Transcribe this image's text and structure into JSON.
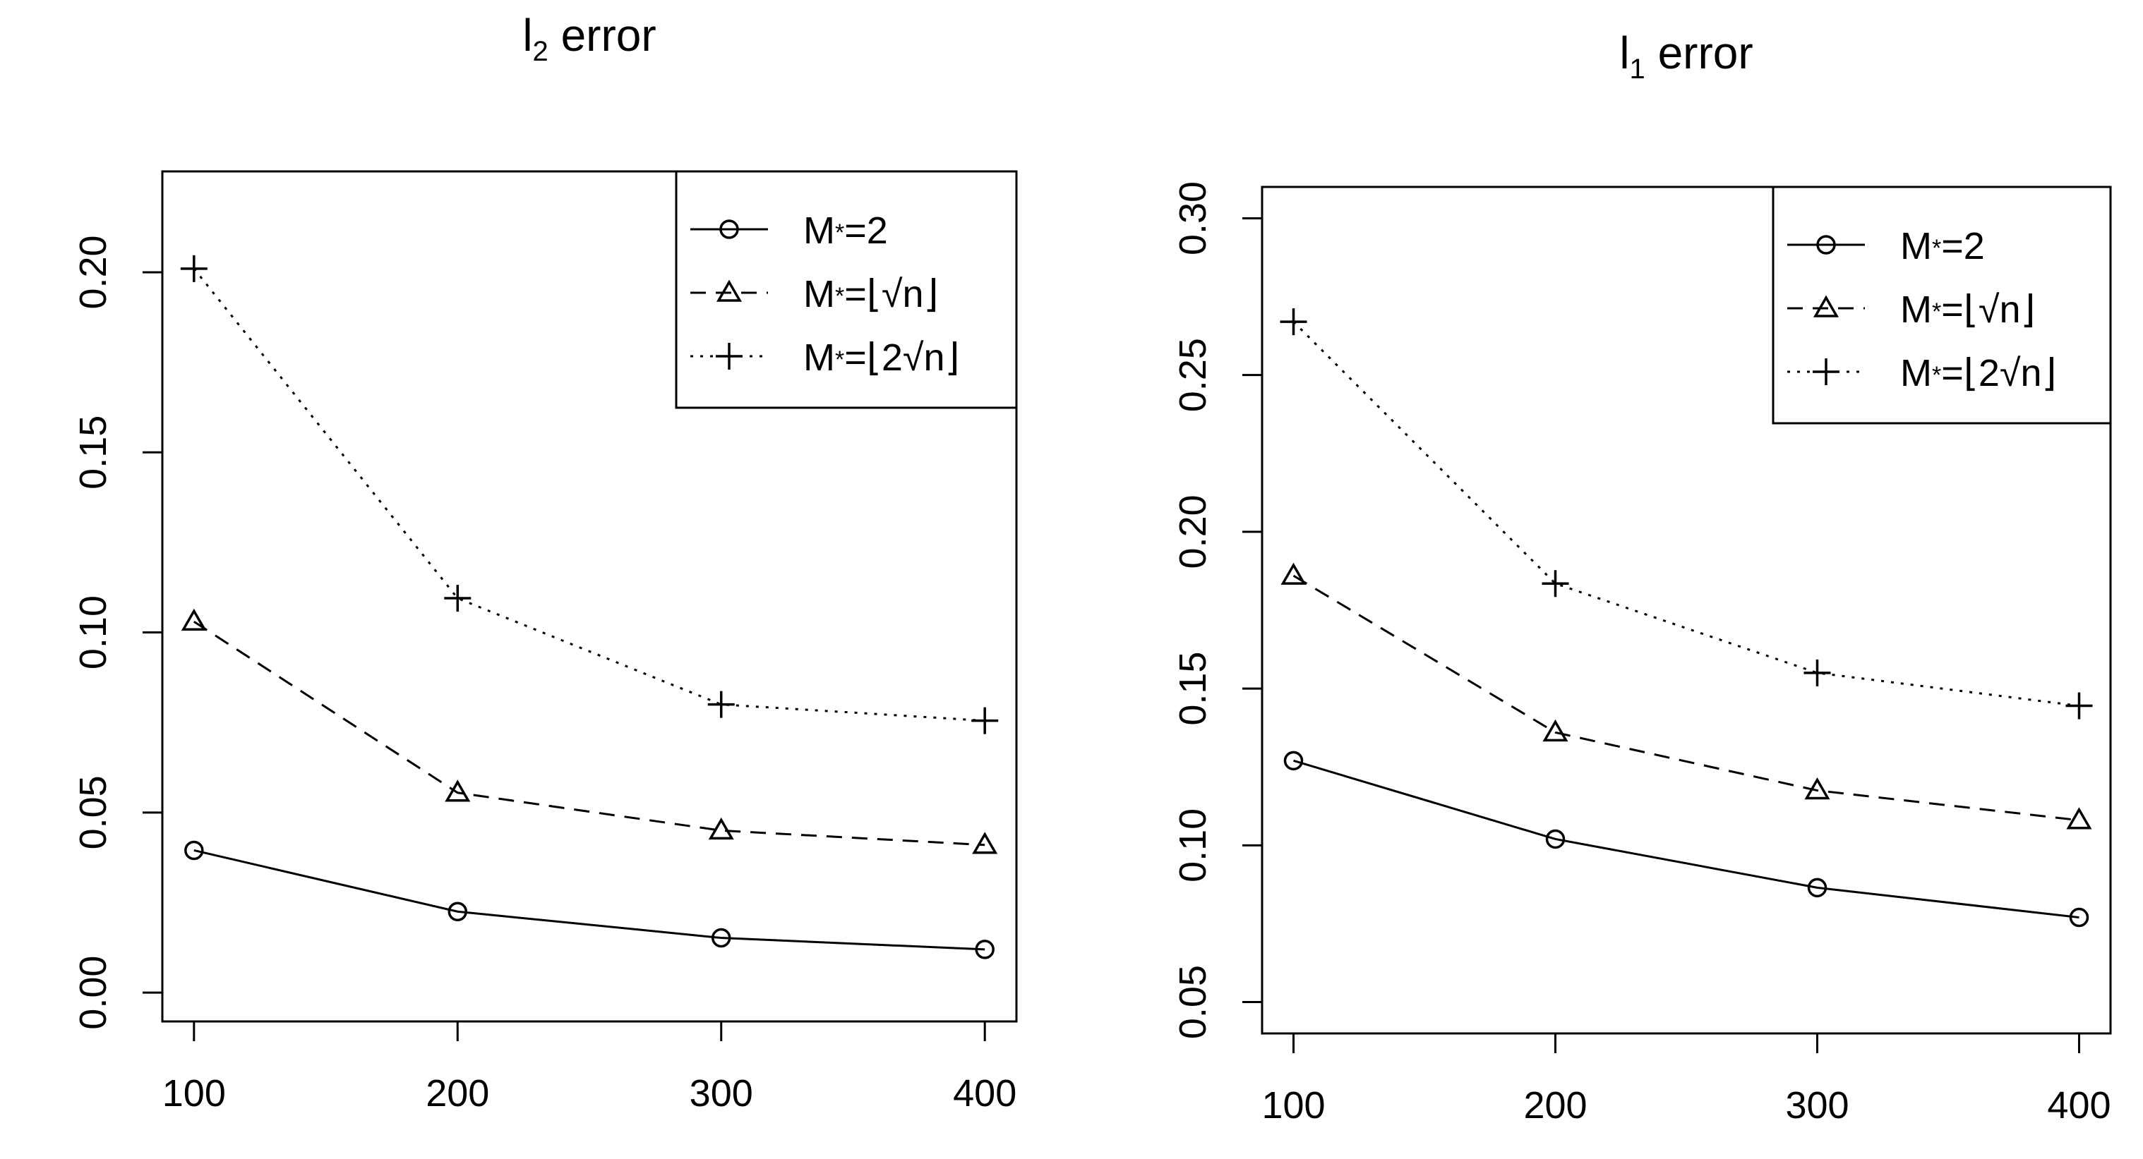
{
  "chart_data": [
    {
      "type": "line",
      "title": "l2 error",
      "title_main": "l",
      "title_sub": "2",
      "title_rest": " error",
      "x": [
        100,
        200,
        300,
        400
      ],
      "xticks": [
        "100",
        "200",
        "300",
        "400"
      ],
      "xlim": [
        88,
        412
      ],
      "yticks": [
        "0.00",
        "0.05",
        "0.10",
        "0.15",
        "0.20"
      ],
      "ylim": [
        -0.008,
        0.228
      ],
      "legend": "top-right",
      "series": [
        {
          "name": "M*=2",
          "marker": "circle",
          "line": "solid",
          "values": [
            0.0395,
            0.0225,
            0.0152,
            0.012
          ]
        },
        {
          "name": "M*=⌊√n⌋",
          "marker": "triangle",
          "line": "dashed",
          "values": [
            0.103,
            0.0555,
            0.045,
            0.041
          ]
        },
        {
          "name": "M*=⌊2√n⌋",
          "marker": "plus",
          "line": "dotted",
          "values": [
            0.201,
            0.1095,
            0.08,
            0.0755
          ]
        }
      ]
    },
    {
      "type": "line",
      "title": "l1 error",
      "title_main": "l",
      "title_sub": "1",
      "title_rest": " error",
      "x": [
        100,
        200,
        300,
        400
      ],
      "xticks": [
        "100",
        "200",
        "300",
        "400"
      ],
      "xlim": [
        88,
        412
      ],
      "yticks": [
        "0.05",
        "0.10",
        "0.15",
        "0.20",
        "0.25",
        "0.30"
      ],
      "ylim": [
        0.04,
        0.31
      ],
      "legend": "top-right",
      "series": [
        {
          "name": "M*=2",
          "marker": "circle",
          "line": "solid",
          "values": [
            0.127,
            0.102,
            0.0865,
            0.077
          ]
        },
        {
          "name": "M*=⌊√n⌋",
          "marker": "triangle",
          "line": "dashed",
          "values": [
            0.186,
            0.136,
            0.1175,
            0.108
          ]
        },
        {
          "name": "M*=⌊2√n⌋",
          "marker": "plus",
          "line": "dotted",
          "values": [
            0.267,
            0.1835,
            0.155,
            0.1445
          ]
        }
      ]
    }
  ]
}
